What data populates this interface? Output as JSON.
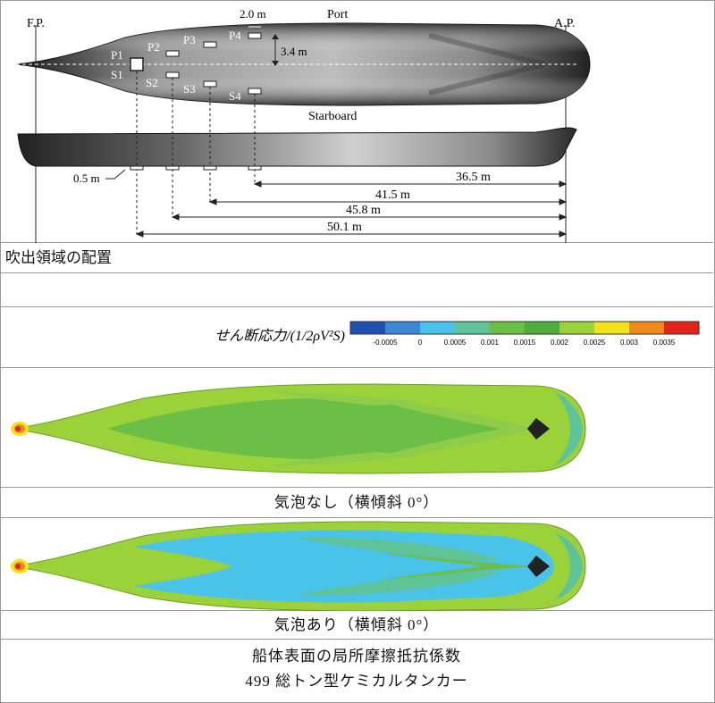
{
  "layout_diagram": {
    "labels": {
      "fp": "F.P.",
      "ap": "A.P.",
      "port": "Port",
      "starboard": "Starboard",
      "width_dim": "2.0 m",
      "offset_dim": "3.4 m",
      "depth_dim": "0.5 m"
    },
    "points_port": [
      "P1",
      "P2",
      "P3",
      "P4"
    ],
    "points_starboard": [
      "S1",
      "S2",
      "S3",
      "S4"
    ],
    "distances": [
      "36.5 m",
      "41.5 m",
      "45.8 m",
      "50.1 m"
    ]
  },
  "caption_layout": "吹出領域の配置",
  "colorbar": {
    "label": "せん断応力/(1/2ρV²S)",
    "ticks": [
      "-0.0005",
      "0",
      "0.0005",
      "0.001",
      "0.0015",
      "0.002",
      "0.0025",
      "0.003",
      "0.0035"
    ],
    "colors": [
      "#1f4fb0",
      "#3c86d4",
      "#49c3ea",
      "#5fc39a",
      "#6bbf46",
      "#4dac3c",
      "#9bd23a",
      "#f2e21c",
      "#f08a1c",
      "#e2231a"
    ]
  },
  "caption_no_bubble": "気泡なし（横傾斜 0°）",
  "caption_bubble": "気泡あり（横傾斜 0°）",
  "caption_main": "船体表面の局所摩擦抵抗係数",
  "caption_ship": "499 総トン型ケミカルタンカー"
}
